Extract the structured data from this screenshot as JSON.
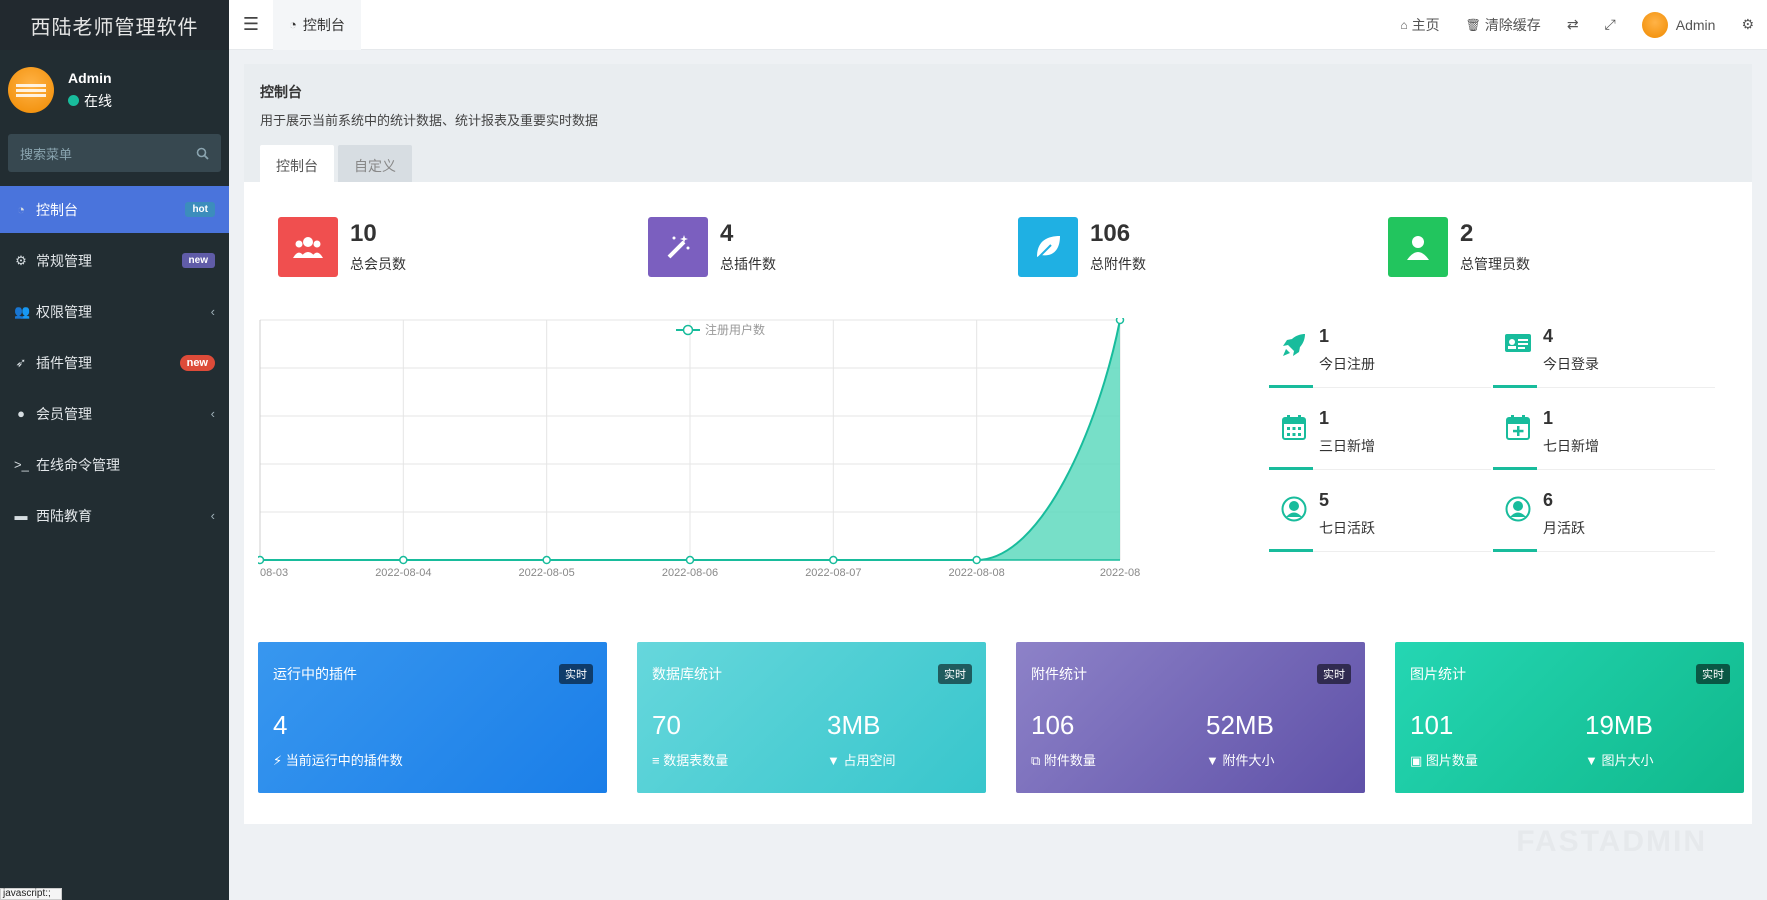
{
  "app": {
    "title": "西陆老师管理软件"
  },
  "user": {
    "name": "Admin",
    "status": "在线"
  },
  "search": {
    "placeholder": "搜索菜单"
  },
  "sidebar": {
    "items": [
      {
        "label": "控制台",
        "badge": "hot"
      },
      {
        "label": "常规管理",
        "badge": "new"
      },
      {
        "label": "权限管理"
      },
      {
        "label": "插件管理",
        "badge": "new"
      },
      {
        "label": "会员管理"
      },
      {
        "label": "在线命令管理"
      },
      {
        "label": "西陆教育"
      }
    ]
  },
  "topbar": {
    "tab": "控制台",
    "home": "主页",
    "clear_cache": "清除缓存",
    "user": "Admin"
  },
  "panel": {
    "title": "控制台",
    "description": "用于展示当前系统中的统计数据、统计报表及重要实时数据",
    "tabs": [
      "控制台",
      "自定义"
    ]
  },
  "stats": [
    {
      "value": "10",
      "label": "总会员数",
      "color": "#f04f4f"
    },
    {
      "value": "4",
      "label": "总插件数",
      "color": "#7b5fbf"
    },
    {
      "value": "106",
      "label": "总附件数",
      "color": "#1fb0e3"
    },
    {
      "value": "2",
      "label": "总管理员数",
      "color": "#22c55e"
    }
  ],
  "mini_stats": [
    {
      "value": "1",
      "label": "今日注册",
      "icon": "rocket-icon"
    },
    {
      "value": "4",
      "label": "今日登录",
      "icon": "id-card-icon"
    },
    {
      "value": "1",
      "label": "三日新增",
      "icon": "calendar-icon"
    },
    {
      "value": "1",
      "label": "七日新增",
      "icon": "calendar-plus-icon"
    },
    {
      "value": "5",
      "label": "七日活跃",
      "icon": "user-circle-icon"
    },
    {
      "value": "6",
      "label": "月活跃",
      "icon": "user-circle-icon"
    }
  ],
  "cards": [
    {
      "title": "运行中的插件",
      "tag": "实时",
      "values": [
        {
          "value": "4",
          "label": "当前运行中的插件数"
        }
      ]
    },
    {
      "title": "数据库统计",
      "tag": "实时",
      "values": [
        {
          "value": "70",
          "label": "数据表数量"
        },
        {
          "value": "3MB",
          "label": "占用空间"
        }
      ]
    },
    {
      "title": "附件统计",
      "tag": "实时",
      "values": [
        {
          "value": "106",
          "label": "附件数量"
        },
        {
          "value": "52MB",
          "label": "附件大小"
        }
      ]
    },
    {
      "title": "图片统计",
      "tag": "实时",
      "values": [
        {
          "value": "101",
          "label": "图片数量"
        },
        {
          "value": "19MB",
          "label": "图片大小"
        }
      ]
    }
  ],
  "chart_data": {
    "type": "area",
    "x": [
      "08-03",
      "2022-08-04",
      "2022-08-05",
      "2022-08-06",
      "2022-08-07",
      "2022-08-08",
      "2022-08"
    ],
    "series": [
      {
        "name": "注册用户数",
        "values": [
          0,
          0,
          0,
          0,
          0,
          0,
          1
        ]
      }
    ],
    "ylim": [
      0,
      1
    ],
    "grid": true,
    "legend": "top-center",
    "color": "#18bc9c"
  },
  "watermark": "FASTADMIN",
  "statusbar": "javascript:;"
}
